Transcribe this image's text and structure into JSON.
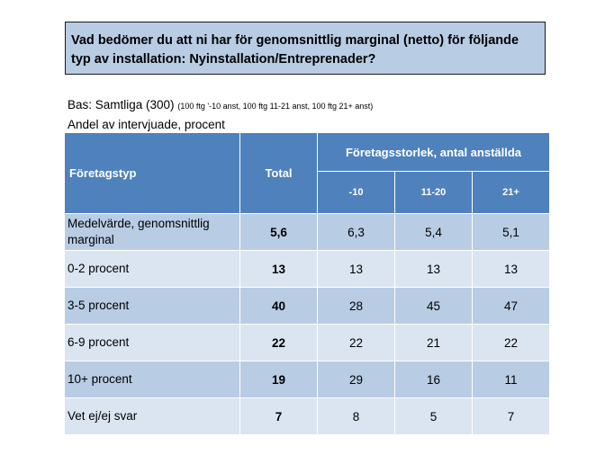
{
  "question": "Vad bedömer du att ni har för genomsnittlig marginal (netto) för följande typ av installation: Nyinstallation/Entreprenader?",
  "base": {
    "label": "Bas: Samtliga (300)",
    "note": "(100 ftg '-10 anst, 100 ftg 11-21 anst, 100 ftg 21+ anst)"
  },
  "subtitle": "Andel av intervjuade, procent",
  "table": {
    "col_type": "Företagstyp",
    "col_total": "Total",
    "col_group": "Företagsstorlek, antal anställda",
    "subcols": [
      "-10",
      "11-20",
      "21+"
    ],
    "rows": [
      {
        "label": "Medelvärde, genomsnittlig marginal",
        "total": "5,6",
        "values": [
          "6,3",
          "5,4",
          "5,1"
        ]
      },
      {
        "label": "0-2 procent",
        "total": "13",
        "values": [
          "13",
          "13",
          "13"
        ]
      },
      {
        "label": "3-5 procent",
        "total": "40",
        "values": [
          "28",
          "45",
          "47"
        ]
      },
      {
        "label": "6-9 procent",
        "total": "22",
        "values": [
          "22",
          "21",
          "22"
        ]
      },
      {
        "label": "10+ procent",
        "total": "19",
        "values": [
          "29",
          "16",
          "11"
        ]
      },
      {
        "label": "Vet ej/ej svar",
        "total": "7",
        "values": [
          "8",
          "5",
          "7"
        ]
      }
    ]
  }
}
